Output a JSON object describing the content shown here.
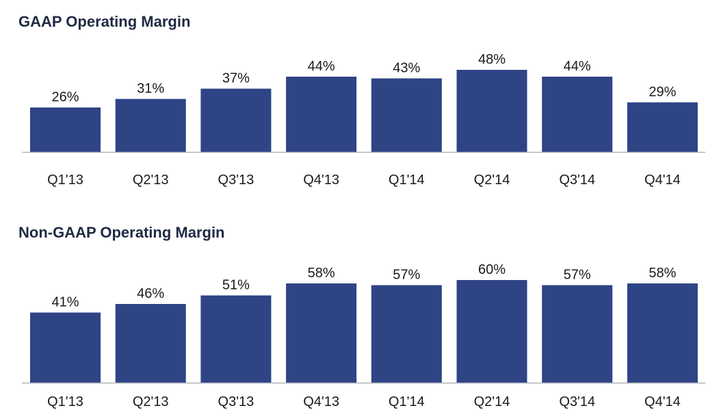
{
  "chart_data": [
    {
      "type": "bar",
      "title": "GAAP Operating Margin",
      "categories": [
        "Q1'13",
        "Q2'13",
        "Q3'13",
        "Q4'13",
        "Q1'14",
        "Q2'14",
        "Q3'14",
        "Q4'14"
      ],
      "values": [
        26,
        31,
        37,
        44,
        43,
        48,
        44,
        29
      ],
      "value_labels": [
        "26%",
        "31%",
        "37%",
        "44%",
        "43%",
        "48%",
        "44%",
        "29%"
      ],
      "xlabel": "",
      "ylabel": "",
      "ylim": [
        0,
        60
      ],
      "grid": false,
      "bar_color": "#2e4485",
      "axis_color": "#b0b4be"
    },
    {
      "type": "bar",
      "title": "Non-GAAP Operating Margin",
      "categories": [
        "Q1'13",
        "Q2'13",
        "Q3'13",
        "Q4'13",
        "Q1'14",
        "Q2'14",
        "Q3'14",
        "Q4'14"
      ],
      "values": [
        41,
        46,
        51,
        58,
        57,
        60,
        57,
        58
      ],
      "value_labels": [
        "41%",
        "46%",
        "51%",
        "58%",
        "57%",
        "60%",
        "57%",
        "58%"
      ],
      "xlabel": "",
      "ylabel": "",
      "ylim": [
        0,
        60
      ],
      "grid": false,
      "bar_color": "#2e4485",
      "axis_color": "#b0b4be"
    }
  ]
}
